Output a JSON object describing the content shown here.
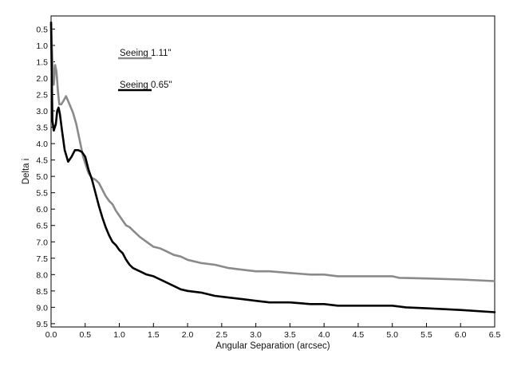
{
  "chart_data": {
    "type": "line",
    "title": "",
    "xlabel": "Angular Separation (arcsec)",
    "ylabel": "Delta i",
    "xlim": [
      0.0,
      6.5
    ],
    "ylim": [
      0.1,
      9.6
    ],
    "y_inverted": true,
    "grid": false,
    "legend_position": "top-left",
    "x_ticks": [
      "0.0",
      "0.5",
      "1.0",
      "1.5",
      "2.0",
      "2.5",
      "3.0",
      "3.5",
      "4.0",
      "4.5",
      "5.0",
      "5.5",
      "6.0",
      "6.5"
    ],
    "y_ticks": [
      "0.5",
      "1.0",
      "1.5",
      "2.0",
      "2.5",
      "3.0",
      "3.5",
      "4.0",
      "4.5",
      "5.0",
      "5.5",
      "6.0",
      "6.5",
      "7.0",
      "7.5",
      "8.0",
      "8.5",
      "9.0",
      "9.5"
    ],
    "series": [
      {
        "name": "Seeing 1.11\"",
        "color": "#8a8a8a",
        "points": [
          [
            0.0,
            0.3
          ],
          [
            0.02,
            1.5
          ],
          [
            0.04,
            2.2
          ],
          [
            0.06,
            1.6
          ],
          [
            0.08,
            1.8
          ],
          [
            0.1,
            2.4
          ],
          [
            0.12,
            2.8
          ],
          [
            0.15,
            2.8
          ],
          [
            0.18,
            2.7
          ],
          [
            0.22,
            2.55
          ],
          [
            0.27,
            2.8
          ],
          [
            0.32,
            3.05
          ],
          [
            0.37,
            3.4
          ],
          [
            0.42,
            3.9
          ],
          [
            0.47,
            4.4
          ],
          [
            0.5,
            4.6
          ],
          [
            0.55,
            4.9
          ],
          [
            0.6,
            5.05
          ],
          [
            0.65,
            5.1
          ],
          [
            0.7,
            5.2
          ],
          [
            0.75,
            5.4
          ],
          [
            0.8,
            5.6
          ],
          [
            0.85,
            5.75
          ],
          [
            0.9,
            5.85
          ],
          [
            0.95,
            6.05
          ],
          [
            1.0,
            6.2
          ],
          [
            1.05,
            6.35
          ],
          [
            1.1,
            6.5
          ],
          [
            1.15,
            6.55
          ],
          [
            1.2,
            6.65
          ],
          [
            1.3,
            6.85
          ],
          [
            1.4,
            7.0
          ],
          [
            1.5,
            7.15
          ],
          [
            1.6,
            7.2
          ],
          [
            1.7,
            7.3
          ],
          [
            1.8,
            7.4
          ],
          [
            1.9,
            7.45
          ],
          [
            2.0,
            7.55
          ],
          [
            2.2,
            7.65
          ],
          [
            2.4,
            7.7
          ],
          [
            2.6,
            7.8
          ],
          [
            2.8,
            7.85
          ],
          [
            3.0,
            7.9
          ],
          [
            3.2,
            7.9
          ],
          [
            3.5,
            7.95
          ],
          [
            3.8,
            8.0
          ],
          [
            4.0,
            8.0
          ],
          [
            4.2,
            8.05
          ],
          [
            4.5,
            8.05
          ],
          [
            4.8,
            8.05
          ],
          [
            5.0,
            8.05
          ],
          [
            5.1,
            8.1
          ],
          [
            5.5,
            8.12
          ],
          [
            6.0,
            8.15
          ],
          [
            6.5,
            8.2
          ]
        ]
      },
      {
        "name": "Seeing 0.65\"",
        "color": "#000000",
        "points": [
          [
            0.0,
            0.3
          ],
          [
            0.01,
            2.0
          ],
          [
            0.02,
            3.3
          ],
          [
            0.04,
            3.6
          ],
          [
            0.07,
            3.4
          ],
          [
            0.09,
            3.0
          ],
          [
            0.11,
            2.9
          ],
          [
            0.13,
            3.1
          ],
          [
            0.16,
            3.6
          ],
          [
            0.2,
            4.2
          ],
          [
            0.25,
            4.55
          ],
          [
            0.3,
            4.4
          ],
          [
            0.35,
            4.2
          ],
          [
            0.4,
            4.2
          ],
          [
            0.45,
            4.25
          ],
          [
            0.5,
            4.4
          ],
          [
            0.55,
            4.8
          ],
          [
            0.6,
            5.1
          ],
          [
            0.65,
            5.5
          ],
          [
            0.7,
            5.9
          ],
          [
            0.75,
            6.25
          ],
          [
            0.8,
            6.55
          ],
          [
            0.85,
            6.8
          ],
          [
            0.9,
            7.0
          ],
          [
            0.95,
            7.1
          ],
          [
            1.0,
            7.25
          ],
          [
            1.05,
            7.35
          ],
          [
            1.1,
            7.55
          ],
          [
            1.15,
            7.7
          ],
          [
            1.2,
            7.8
          ],
          [
            1.3,
            7.9
          ],
          [
            1.4,
            8.0
          ],
          [
            1.5,
            8.05
          ],
          [
            1.6,
            8.15
          ],
          [
            1.7,
            8.25
          ],
          [
            1.8,
            8.35
          ],
          [
            1.9,
            8.45
          ],
          [
            2.0,
            8.5
          ],
          [
            2.2,
            8.55
          ],
          [
            2.4,
            8.65
          ],
          [
            2.6,
            8.7
          ],
          [
            2.8,
            8.75
          ],
          [
            3.0,
            8.8
          ],
          [
            3.2,
            8.85
          ],
          [
            3.5,
            8.85
          ],
          [
            3.8,
            8.9
          ],
          [
            4.0,
            8.9
          ],
          [
            4.2,
            8.95
          ],
          [
            4.5,
            8.95
          ],
          [
            5.0,
            8.95
          ],
          [
            5.2,
            9.0
          ],
          [
            5.5,
            9.03
          ],
          [
            6.0,
            9.08
          ],
          [
            6.5,
            9.15
          ]
        ]
      }
    ]
  }
}
